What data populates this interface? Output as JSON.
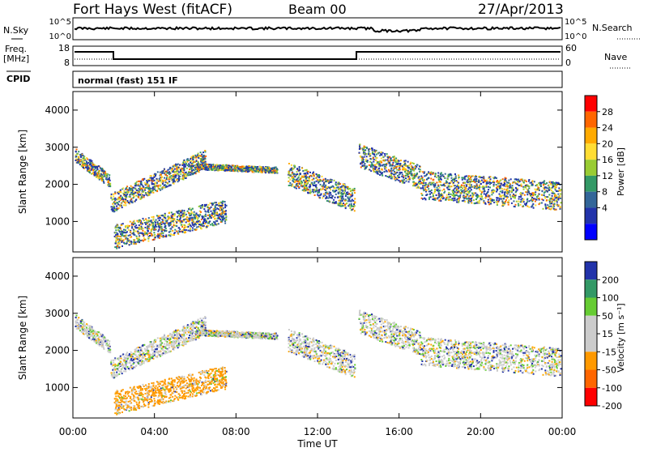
{
  "header": {
    "station": "Fort Hays West (fitACF)",
    "beam": "Beam 00",
    "date": "27/Apr/2013"
  },
  "noise_panel": {
    "left_label": "N.Sky",
    "right_label": "N.Search",
    "left_ticks": [
      "10^5",
      "10^0"
    ],
    "right_ticks": [
      "10^5",
      "10^0"
    ]
  },
  "freq_panel": {
    "left_label_1": "Freq.",
    "left_label_2": "[MHz]",
    "right_label": "Nave",
    "left_ticks": [
      "18",
      "8"
    ],
    "right_ticks": [
      "60",
      "0"
    ],
    "cpid_label": "CPID",
    "cpid_text": "normal (fast) 151 IF"
  },
  "chart_data": [
    {
      "type": "heatmap",
      "title": "",
      "xlabel": "Time UT",
      "ylabel": "Slant Range [km]",
      "xlim": [
        0,
        24
      ],
      "ylim": [
        180,
        4500
      ],
      "yticks": [
        "4000",
        "3000",
        "2000",
        "1000"
      ],
      "xticks": [
        "00:00",
        "04:00",
        "08:00",
        "12:00",
        "16:00",
        "20:00",
        "00:00"
      ],
      "colorbar": {
        "label": "Power [dB]",
        "ticks": [
          "28",
          "24",
          "20",
          "16",
          "12",
          "8",
          "4"
        ],
        "colors": [
          "#ff0000",
          "#ff6600",
          "#ffaa00",
          "#ffdd33",
          "#99cc33",
          "#339966",
          "#336699",
          "#2233aa",
          "#0000ff"
        ]
      }
    },
    {
      "type": "heatmap",
      "title": "",
      "xlabel": "Time UT",
      "ylabel": "Slant Range [km]",
      "xlim": [
        0,
        24
      ],
      "ylim": [
        180,
        4500
      ],
      "yticks": [
        "4000",
        "3000",
        "2000",
        "1000"
      ],
      "xticks": [
        "00:00",
        "04:00",
        "08:00",
        "12:00",
        "16:00",
        "20:00",
        "00:00"
      ],
      "colorbar": {
        "label": "Velocity [m s⁻¹]",
        "ticks": [
          "200",
          "100",
          "50",
          "15",
          "-15",
          "-50",
          "-100",
          "-200"
        ],
        "colors": [
          "#2233aa",
          "#339966",
          "#66cc33",
          "#cccccc",
          "#cccccc",
          "#ff9900",
          "#ff6600",
          "#ff0000"
        ]
      }
    }
  ]
}
